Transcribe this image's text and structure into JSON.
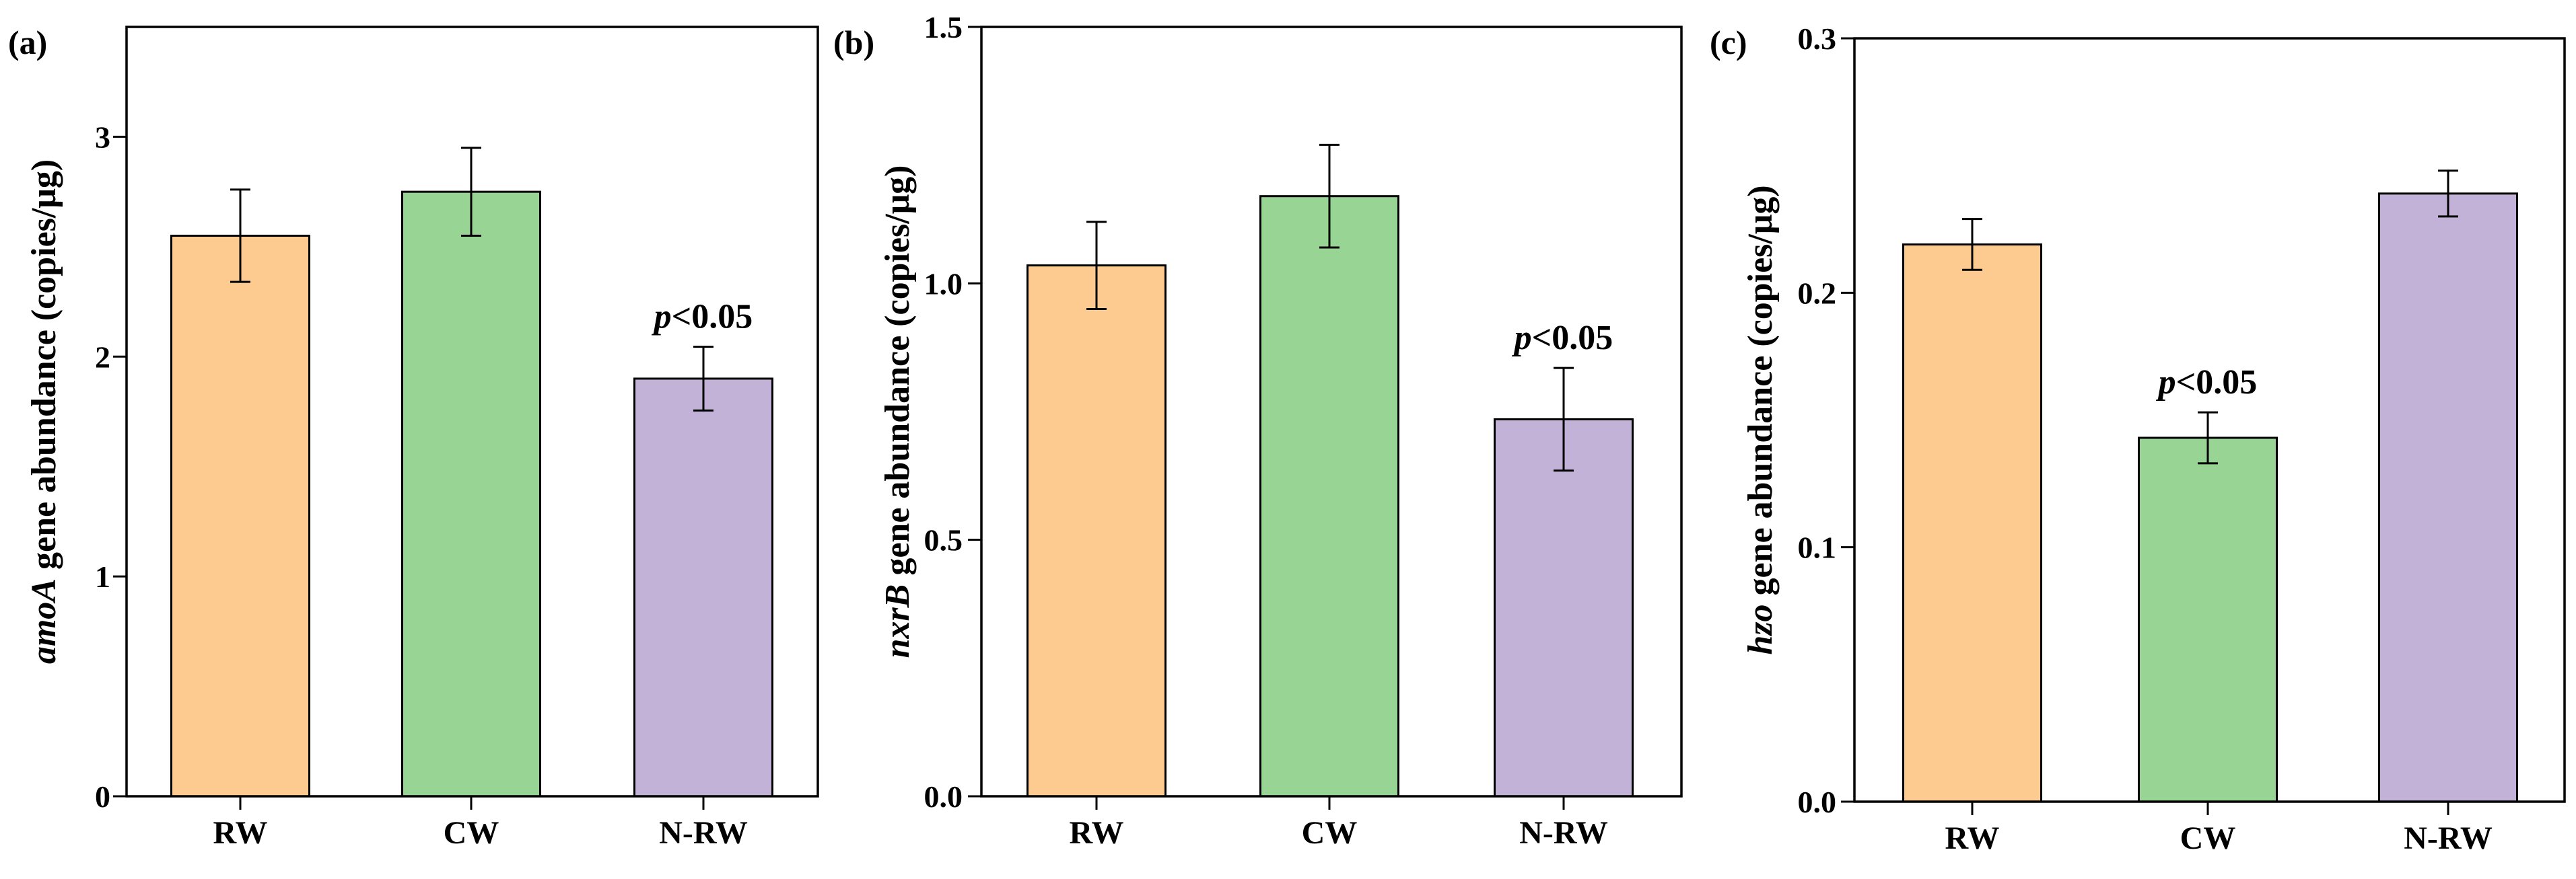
{
  "colors": {
    "RW": "#FDCB8F",
    "CW": "#98D594",
    "N-RW": "#C3B2D8",
    "stroke": "#000000"
  },
  "chart_data": [
    {
      "type": "bar",
      "panel_label": "(a)",
      "ylabel_gene": "amoA",
      "ylabel_rest": " gene abundance (copies/μg)",
      "categories": [
        "RW",
        "CW",
        "N-RW"
      ],
      "values": [
        2.55,
        2.75,
        1.9
      ],
      "errors": [
        0.21,
        0.2,
        0.145
      ],
      "ylim": [
        0,
        3.5
      ],
      "yticks": [
        0,
        1,
        2,
        3
      ],
      "tick_labels": [
        "0",
        "1",
        "2",
        "3"
      ],
      "annotation": {
        "category": "N-RW",
        "p": "p",
        "rest": "<0.05"
      }
    },
    {
      "type": "bar",
      "panel_label": "(b)",
      "ylabel_gene": "nxrB",
      "ylabel_rest": " gene abundance (copies/μg)",
      "categories": [
        "RW",
        "CW",
        "N-RW"
      ],
      "values": [
        1.035,
        1.17,
        0.735
      ],
      "errors": [
        0.085,
        0.1,
        0.1
      ],
      "ylim": [
        0,
        1.5
      ],
      "yticks": [
        0,
        0.5,
        1.0,
        1.5
      ],
      "tick_labels": [
        "0.0",
        "0.5",
        "1.0",
        "1.5"
      ],
      "annotation": {
        "category": "N-RW",
        "p": "p",
        "rest": "<0.05"
      }
    },
    {
      "type": "bar",
      "panel_label": "(c)",
      "ylabel_gene": "hzo",
      "ylabel_rest": " gene abundance (copies/μg)",
      "categories": [
        "RW",
        "CW",
        "N-RW"
      ],
      "values": [
        0.219,
        0.143,
        0.239
      ],
      "errors": [
        0.01,
        0.01,
        0.009
      ],
      "ylim": [
        0,
        0.3
      ],
      "yticks": [
        0,
        0.1,
        0.2,
        0.3
      ],
      "tick_labels": [
        "0.0",
        "0.1",
        "0.2",
        "0.3"
      ],
      "annotation": {
        "category": "CW",
        "p": "p",
        "rest": "<0.05"
      }
    }
  ]
}
